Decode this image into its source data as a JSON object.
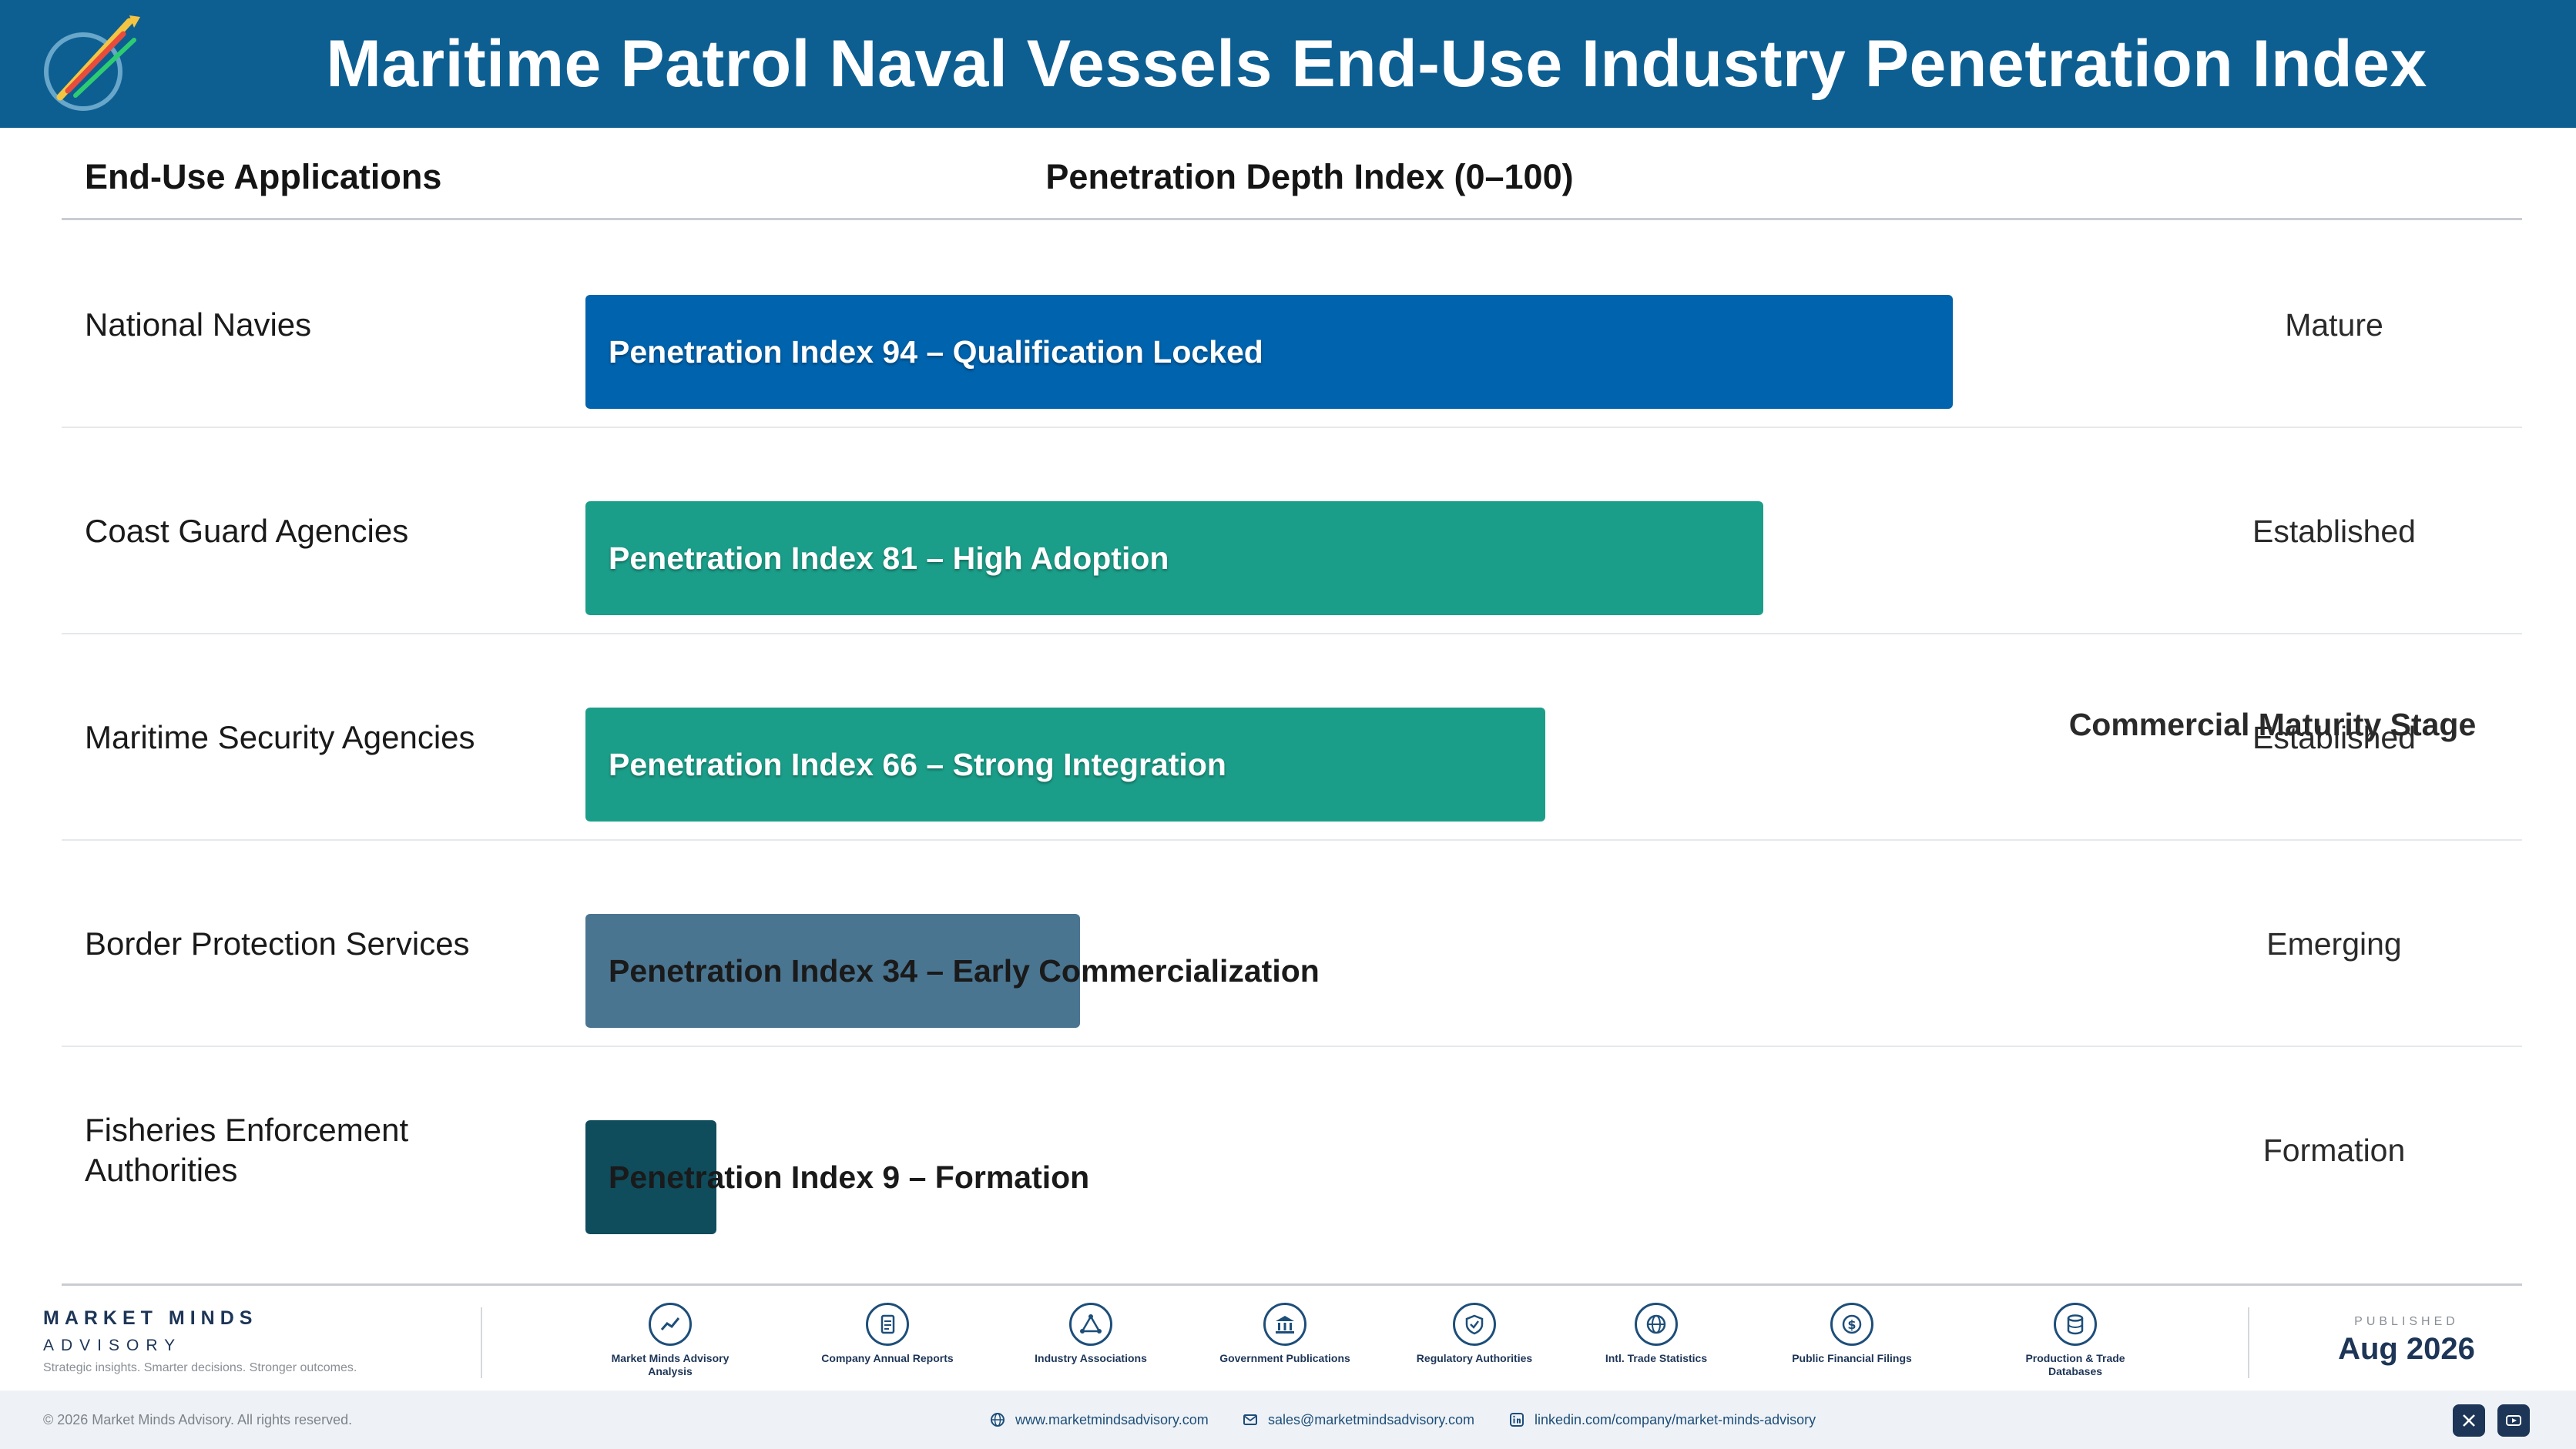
{
  "header": {
    "title": "Maritime Patrol Naval Vessels End-Use Industry Penetration Index"
  },
  "columns": {
    "applications": "End-Use Applications",
    "depth": "Penetration Depth Index (0–100)",
    "stage": "Commercial Maturity Stage"
  },
  "chart_data": {
    "type": "bar",
    "orientation": "horizontal",
    "xlim": [
      0,
      100
    ],
    "categories": [
      "National Navies",
      "Coast Guard Agencies",
      "Maritime Security Agencies",
      "Border Protection Services",
      "Fisheries Enforcement Authorities"
    ],
    "values": [
      94,
      81,
      66,
      34,
      9
    ],
    "bar_labels": [
      "Penetration Index 94 – Qualification Locked",
      "Penetration Index 81 – High Adoption",
      "Penetration Index 66 – Strong Integration",
      "Penetration Index 34 – Early Commercialization",
      "Penetration Index 9 – Formation"
    ],
    "stages": [
      "Mature",
      "Established",
      "Established",
      "Emerging",
      "Formation"
    ],
    "colors": [
      "#0063ad",
      "#1b9e89",
      "#1b9e89",
      "#4a7591",
      "#0f4c5c"
    ]
  },
  "footer": {
    "brand_name": "MARKET MINDS",
    "brand_sub": "ADVISORY",
    "tagline": "Strategic insights. Smarter decisions. Stronger outcomes.",
    "sources": [
      {
        "label": "Market Minds Advisory Analysis",
        "icon": "chart-line-icon"
      },
      {
        "label": "Company Annual Reports",
        "icon": "document-icon"
      },
      {
        "label": "Industry Associations",
        "icon": "network-icon"
      },
      {
        "label": "Government Publications",
        "icon": "government-building-icon"
      },
      {
        "label": "Regulatory Authorities",
        "icon": "shield-check-icon"
      },
      {
        "label": "Intl. Trade Statistics",
        "icon": "globe-icon"
      },
      {
        "label": "Public Financial Filings",
        "icon": "dollar-coin-icon"
      },
      {
        "label": "Production & Trade Databases",
        "icon": "database-icon"
      }
    ],
    "published_label": "PUBLISHED",
    "published_date": "Aug 2026",
    "copyright": "© 2026 Market Minds Advisory. All rights reserved.",
    "website": "www.marketmindsadvisory.com",
    "email": "sales@marketmindsadvisory.com",
    "linkedin": "linkedin.com/company/market-minds-advisory"
  }
}
